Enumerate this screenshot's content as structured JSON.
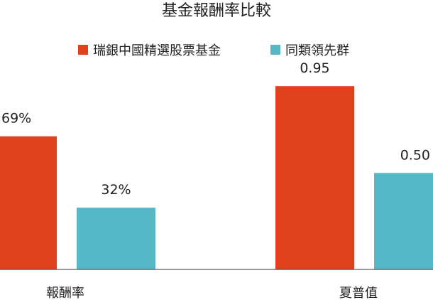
{
  "chart_data": {
    "type": "bar",
    "title": "基金報酬率比較",
    "legend_position": "top",
    "grid": false,
    "panels": [
      {
        "category": "報酬率",
        "ylim": [
          0,
          1.4
        ],
        "series": [
          {
            "name": "瑞銀中國精選股票基金",
            "value": 0.69,
            "label": "69%"
          },
          {
            "name": "同類領先群",
            "value": 0.32,
            "label": "32%"
          }
        ]
      },
      {
        "category": "夏普值",
        "ylim": [
          0,
          1.4
        ],
        "series": [
          {
            "name": "瑞銀中國精選股票基金",
            "value": 0.95,
            "label": "0.95"
          },
          {
            "name": "同類領先群",
            "value": 0.5,
            "label": "0.50"
          }
        ]
      }
    ],
    "legend": [
      {
        "name": "瑞銀中國精選股票基金",
        "color": "#E1401C"
      },
      {
        "name": "同類領先群",
        "color": "#56B7C6"
      }
    ],
    "colors": [
      "#E1401C",
      "#56B7C6"
    ],
    "baseline_color": "#333333"
  }
}
